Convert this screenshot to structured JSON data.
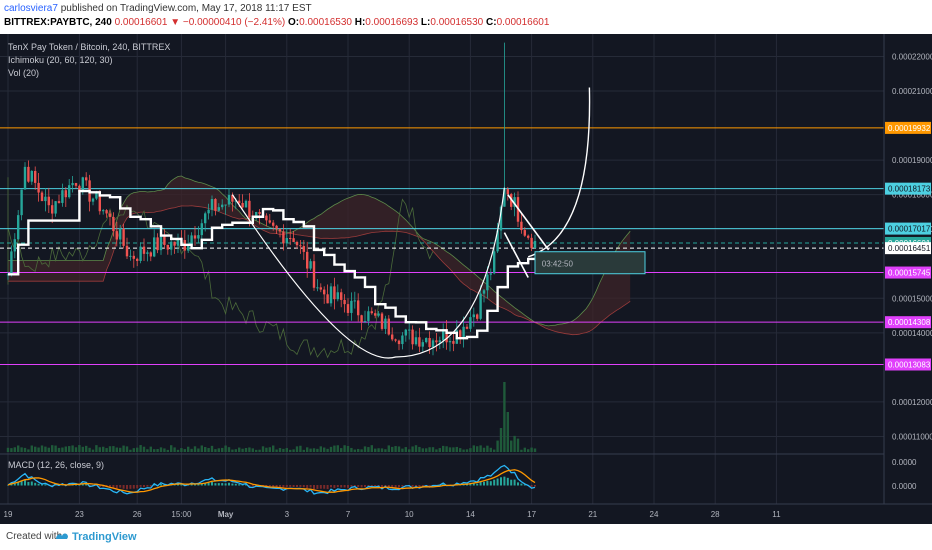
{
  "header": {
    "author": "carlosviera7",
    "published_text": " published on TradingView.com, May 17, 2018 11:17 EST",
    "ticker": "BITTREX:PAYBTC, 240",
    "last": "0.00016601",
    "change": "−0.00000410 (−2.41%)",
    "open_label": "O:",
    "open": "0.00016530",
    "high_label": "H:",
    "high": "0.00016693",
    "low_label": "L:",
    "low": "0.00016530",
    "close_label": "C:",
    "close": "0.00016601"
  },
  "legend": {
    "title": "TenX Pay Token / Bitcoin, 240, BITTREX",
    "ichimoku": "Ichimoku (20, 60, 120, 30)",
    "vol": "Vol (20)",
    "macd": "MACD (12, 26, close, 9)"
  },
  "footer": {
    "created_with": "Created with",
    "brand": "TradingView"
  },
  "colors": {
    "background": "#131722",
    "up_candle": "#26a69a",
    "down_candle": "#ef5350",
    "orange_level": "#ff9800",
    "cyan_level": "#4dd0e1",
    "magenta_level": "#e040fb",
    "conversion_line": "#ffffff"
  },
  "chart_data": {
    "type": "candlestick",
    "title": "TenX Pay Token / Bitcoin, 240, BITTREX",
    "y_ticks": [
      "0.00022000",
      "0.00021000",
      "0.00019000",
      "0.00018000",
      "0.00017000",
      "0.00015000",
      "0.00014000",
      "0.00012000",
      "0.00011000"
    ],
    "y_range": [
      0.0001055,
      0.0002265
    ],
    "x_ticks": [
      "19",
      "23",
      "26",
      "15:00",
      "May",
      "3",
      "7",
      "10",
      "14",
      "17",
      "21",
      "24",
      "28",
      "11"
    ],
    "x_tick_bar_index": [
      0,
      21,
      38,
      51,
      64,
      82,
      100,
      118,
      136,
      154,
      172,
      190,
      208,
      226
    ],
    "horizontal_levels": [
      {
        "label": "0.00019932",
        "value": 0.00019932,
        "color": "#ff9800"
      },
      {
        "label": "0.00018173",
        "value": 0.00018173,
        "color": "#4dd0e1"
      },
      {
        "label": "0.00017017",
        "value": 0.00017017,
        "color": "#4dd0e1"
      },
      {
        "label": "0.00016601",
        "value": 0.00016601,
        "color": "#26a69a"
      },
      {
        "label": "0.00016451",
        "value": 0.00016451,
        "color": "#ffffff"
      },
      {
        "label": "0.00015745",
        "value": 0.00015745,
        "color": "#e040fb"
      },
      {
        "label": "0.00014308",
        "value": 0.00014308,
        "color": "#e040fb"
      },
      {
        "label": "0.00013083",
        "value": 0.00013083,
        "color": "#e040fb"
      }
    ],
    "countdown": "03:42:50",
    "key_prices": [
      {
        "bar": 0,
        "price": 0.000157
      },
      {
        "bar": 5,
        "price": 0.000188
      },
      {
        "bar": 12,
        "price": 0.000176
      },
      {
        "bar": 20,
        "price": 0.0001845
      },
      {
        "bar": 28,
        "price": 0.000176
      },
      {
        "bar": 36,
        "price": 0.000162
      },
      {
        "bar": 44,
        "price": 0.0001655
      },
      {
        "bar": 52,
        "price": 0.000166
      },
      {
        "bar": 60,
        "price": 0.000176
      },
      {
        "bar": 68,
        "price": 0.000179
      },
      {
        "bar": 76,
        "price": 0.00017
      },
      {
        "bar": 84,
        "price": 0.000168
      },
      {
        "bar": 92,
        "price": 0.000152
      },
      {
        "bar": 100,
        "price": 0.000148
      },
      {
        "bar": 108,
        "price": 0.000144
      },
      {
        "bar": 116,
        "price": 0.000139
      },
      {
        "bar": 124,
        "price": 0.0001385
      },
      {
        "bar": 132,
        "price": 0.00014
      },
      {
        "bar": 138,
        "price": 0.000147
      },
      {
        "bar": 143,
        "price": 0.000161
      },
      {
        "bar": 146,
        "price": 0.000183
      },
      {
        "bar": 149,
        "price": 0.000177
      },
      {
        "bar": 152,
        "price": 0.00017
      },
      {
        "bar": 155,
        "price": 0.000166
      }
    ],
    "macd": {
      "ticks": [
        "0.0000",
        "0.0000"
      ]
    },
    "annotations": [
      "cup-and-handle white curve",
      "bull flag lines",
      "projected white arc"
    ]
  }
}
